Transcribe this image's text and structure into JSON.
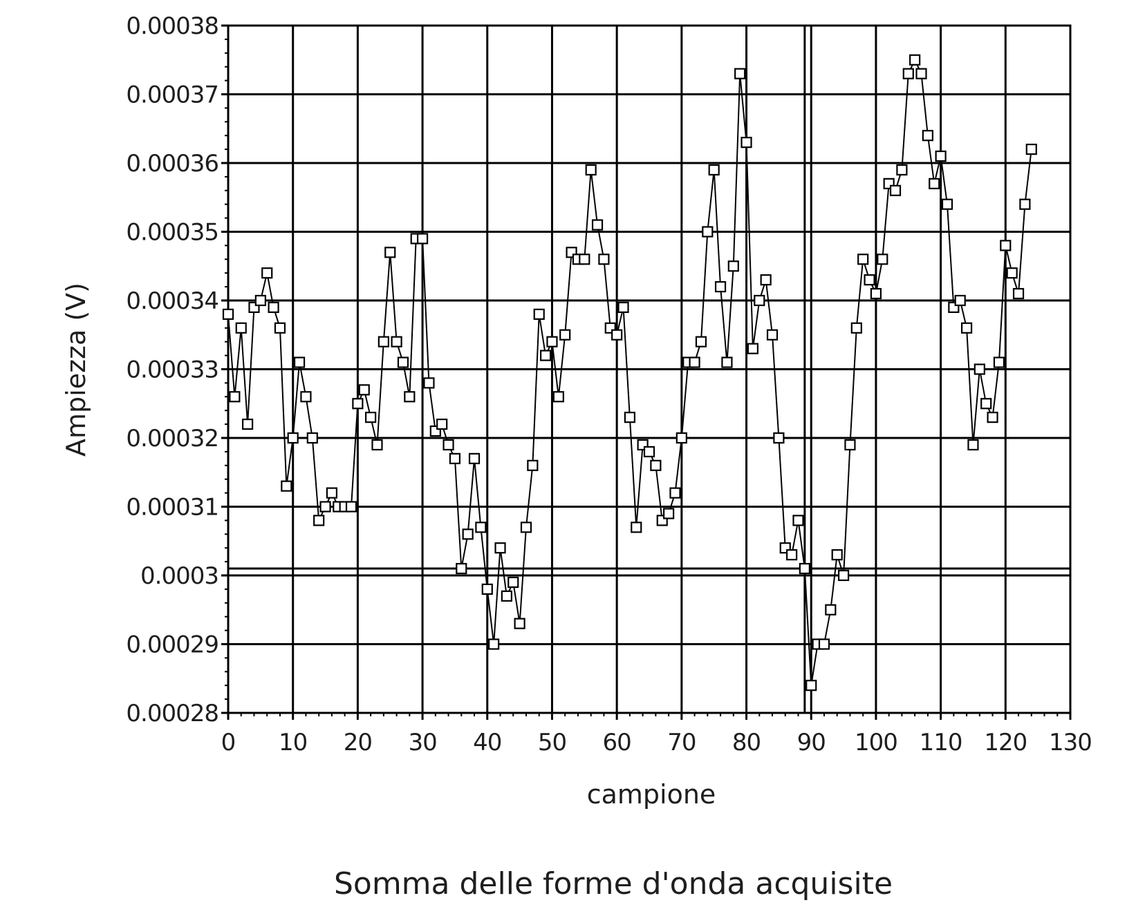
{
  "chart_data": {
    "type": "line",
    "title": "Somma delle forme d'onda acquisite",
    "xlabel": "campione",
    "ylabel": "Ampiezza (V)",
    "xlim": [
      0,
      130
    ],
    "ylim": [
      0.00028,
      0.00038
    ],
    "x_ticks": [
      "0",
      "10",
      "20",
      "30",
      "40",
      "50",
      "60",
      "70",
      "80",
      "90",
      "100",
      "110",
      "120",
      "130"
    ],
    "y_ticks": [
      "0.00038",
      "0.00037",
      "0.00036",
      "0.00035",
      "0.00034",
      "0.00033",
      "0.00032",
      "0.00031",
      "0.0003",
      "0.00029",
      "0.00028"
    ],
    "grid": true,
    "marker": "square",
    "cursor_x": 89,
    "cursor_y": 0.000301,
    "series": [
      {
        "x": [
          0,
          1,
          2,
          3,
          4,
          5,
          6,
          7,
          8,
          9,
          10,
          11,
          12,
          13,
          14,
          15,
          16,
          17,
          18,
          19,
          20,
          21,
          22,
          23,
          24,
          25,
          26,
          27,
          28,
          29,
          30,
          31,
          32,
          33,
          34,
          35,
          36,
          37,
          38,
          39,
          40,
          41,
          42,
          43,
          44,
          45,
          46,
          47,
          48,
          49,
          50,
          51,
          52,
          53,
          54,
          55,
          56,
          57,
          58,
          59,
          60,
          61,
          62,
          63,
          64,
          65,
          66,
          67,
          68,
          69,
          70,
          71,
          72,
          73,
          74,
          75,
          76,
          77,
          78,
          79,
          80,
          81,
          82,
          83,
          84,
          85,
          86,
          87,
          88,
          89,
          90,
          91,
          92,
          93,
          94,
          95,
          96,
          97,
          98,
          99,
          100,
          101,
          102,
          103,
          104,
          105,
          106,
          107,
          108,
          109,
          110,
          111,
          112,
          113,
          114,
          115,
          116,
          117,
          118,
          119,
          120,
          121,
          122,
          123,
          124
        ],
        "values": [
          0.000338,
          0.000326,
          0.000336,
          0.000322,
          0.000339,
          0.00034,
          0.000344,
          0.000339,
          0.000336,
          0.000313,
          0.00032,
          0.000331,
          0.000326,
          0.00032,
          0.000308,
          0.00031,
          0.000312,
          0.00031,
          0.00031,
          0.00031,
          0.000325,
          0.000327,
          0.000323,
          0.000319,
          0.000334,
          0.000347,
          0.000334,
          0.000331,
          0.000326,
          0.000349,
          0.000349,
          0.000328,
          0.000321,
          0.000322,
          0.000319,
          0.000317,
          0.000301,
          0.000306,
          0.000317,
          0.000307,
          0.000298,
          0.00029,
          0.000304,
          0.000297,
          0.000299,
          0.000293,
          0.000307,
          0.000316,
          0.000338,
          0.000332,
          0.000334,
          0.000326,
          0.000335,
          0.000347,
          0.000346,
          0.000346,
          0.000359,
          0.000351,
          0.000346,
          0.000336,
          0.000335,
          0.000339,
          0.000323,
          0.000307,
          0.000319,
          0.000318,
          0.000316,
          0.000308,
          0.000309,
          0.000312,
          0.00032,
          0.000331,
          0.000331,
          0.000334,
          0.00035,
          0.000359,
          0.000342,
          0.000331,
          0.000345,
          0.000373,
          0.000363,
          0.000333,
          0.00034,
          0.000343,
          0.000335,
          0.00032,
          0.000304,
          0.000303,
          0.000308,
          0.000301,
          0.000284,
          0.00029,
          0.00029,
          0.000295,
          0.000303,
          0.0003,
          0.000319,
          0.000336,
          0.000346,
          0.000343,
          0.000341,
          0.000346,
          0.000357,
          0.000356,
          0.000359,
          0.000373,
          0.000375,
          0.000373,
          0.000364,
          0.000357,
          0.000361,
          0.000354,
          0.000339,
          0.00034,
          0.000336,
          0.000319,
          0.00033,
          0.000325,
          0.000323,
          0.000331,
          0.000348,
          0.000344,
          0.000341,
          0.000354,
          0.000362
        ]
      }
    ]
  }
}
